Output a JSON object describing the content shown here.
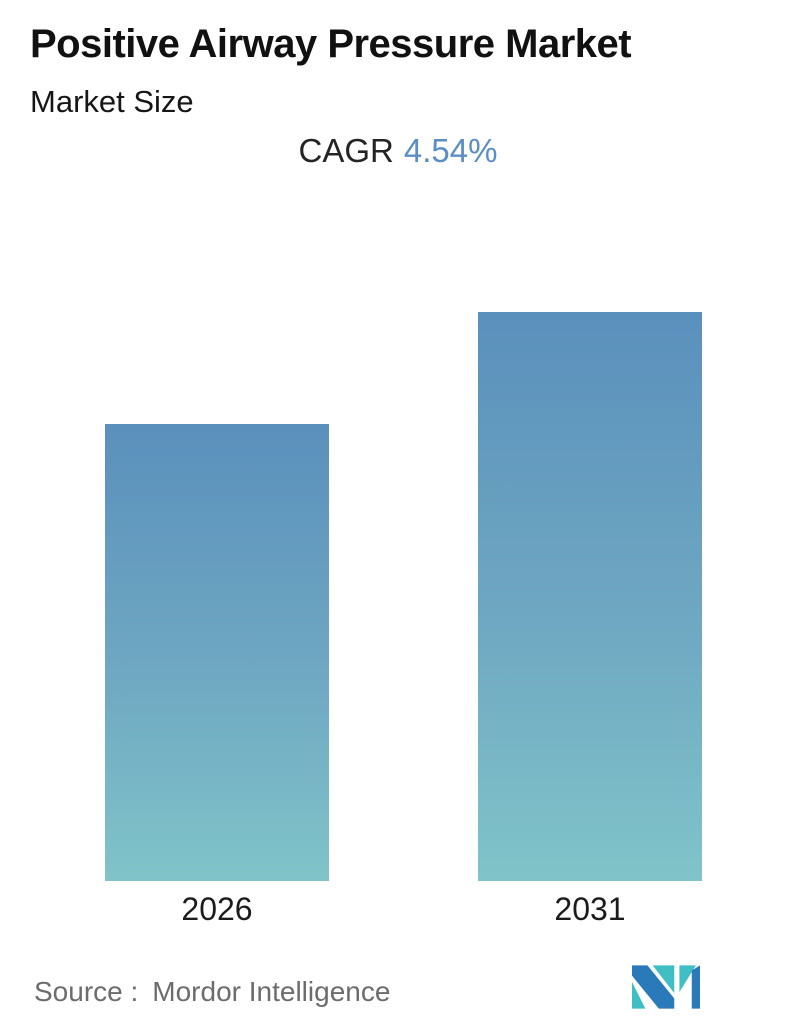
{
  "title": "Positive Airway Pressure Market",
  "subtitle": "Market Size",
  "cagr": {
    "label": "CAGR",
    "value": "4.54%"
  },
  "source": {
    "label": "Source :",
    "name": "Mordor Intelligence"
  },
  "logo": {
    "name": "mordor-intelligence-logo",
    "teal": "#3fbfc4",
    "blue": "#2a7ab9"
  },
  "colors": {
    "background": "#ffffff",
    "title_text": "#111111",
    "cagr_value_text": "#5b8ec2",
    "source_text": "#6c6c6c",
    "bar_gradient_top": "#5a90bc",
    "bar_gradient_bottom": "#80c4c9"
  },
  "chart_data": {
    "type": "bar",
    "title": "Positive Airway Pressure Market",
    "subtitle": "Market Size",
    "categories": [
      "2026",
      "2031"
    ],
    "values": [
      0.803,
      1.0
    ],
    "values_note": "No numeric axis or data labels shown; values are relative bar heights with 2031 indexed to 1.0. Ratio matches growth at CAGR 4.54% from 2026 to 2031.",
    "cagr_percent": 4.54,
    "xlabel": "",
    "ylabel": "",
    "axis_ticks": "none",
    "gridlines": false,
    "legend": "none",
    "bar_gradient": [
      "#5a90bc",
      "#80c4c9"
    ]
  }
}
